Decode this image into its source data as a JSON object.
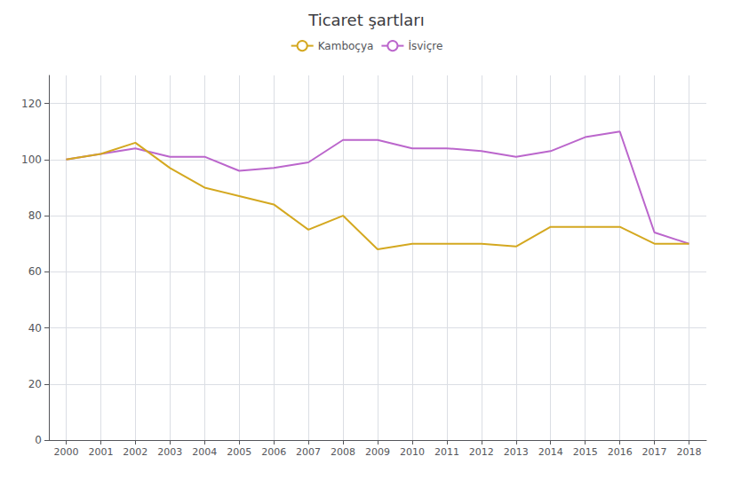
{
  "chart_data": {
    "type": "line",
    "title": "Ticaret şartları",
    "x": [
      2000,
      2001,
      2002,
      2003,
      2004,
      2005,
      2006,
      2007,
      2008,
      2009,
      2010,
      2011,
      2012,
      2013,
      2014,
      2015,
      2016,
      2017,
      2018
    ],
    "series": [
      {
        "name": "Kamboçya",
        "color": "#d4a820",
        "values": [
          100,
          102,
          106,
          97,
          90,
          87,
          84,
          75,
          80,
          68,
          70,
          70,
          70,
          69,
          76,
          76,
          76,
          70,
          70
        ]
      },
      {
        "name": "İsviçre",
        "color": "#bb66cc",
        "values": [
          100,
          102,
          104,
          101,
          101,
          96,
          97,
          99,
          107,
          107,
          104,
          104,
          103,
          101,
          103,
          108,
          110,
          74,
          70
        ]
      }
    ],
    "xlim": [
      1999.5,
      2018.5
    ],
    "xticks": [
      2000,
      2001,
      2002,
      2003,
      2004,
      2005,
      2006,
      2007,
      2008,
      2009,
      2010,
      2011,
      2012,
      2013,
      2014,
      2015,
      2016,
      2017,
      2018
    ],
    "ylim": [
      0,
      130
    ],
    "yticks": [
      0,
      20,
      40,
      60,
      80,
      100,
      120
    ],
    "grid": true,
    "legend": "top"
  }
}
